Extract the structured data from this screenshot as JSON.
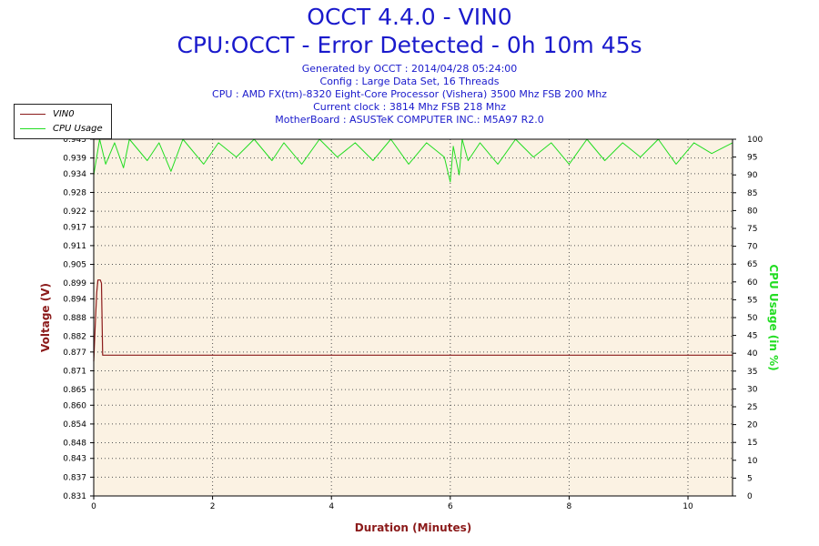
{
  "header": {
    "title": "OCCT 4.4.0 - VIN0",
    "subtitle": "CPU:OCCT - Error Detected - 0h 10m 45s",
    "info_lines": [
      "Generated by OCCT : 2014/04/28 05:24:00",
      "Config : Large Data Set, 16 Threads",
      "CPU : AMD FX(tm)-8320 Eight-Core Processor (Vishera) 3500 Mhz FSB 200 Mhz",
      "Current clock : 3814 Mhz FSB 218 Mhz",
      "MotherBoard : ASUSTeK COMPUTER INC.: M5A97 R2.0"
    ]
  },
  "colors": {
    "voltage": "#8b1a1a",
    "cpu": "#22dd22",
    "plot_bg": "#fbf2e3",
    "grid": "#555555",
    "text_blue": "#1a1acc"
  },
  "chart_data": {
    "type": "line",
    "xlabel": "Duration (Minutes)",
    "ylabel_left": "Voltage (V)",
    "ylabel_right": "CPU Usage (in %)",
    "xlim": [
      0,
      10.75
    ],
    "ylim_left": [
      0.831,
      0.945
    ],
    "ylim_right": [
      0,
      100
    ],
    "x_ticks": [
      "0",
      "2",
      "4",
      "6",
      "8",
      "10"
    ],
    "y_ticks_left": [
      "0.945",
      "0.939",
      "0.934",
      "0.928",
      "0.922",
      "0.917",
      "0.911",
      "0.905",
      "0.899",
      "0.894",
      "0.888",
      "0.882",
      "0.877",
      "0.871",
      "0.865",
      "0.860",
      "0.854",
      "0.848",
      "0.843",
      "0.837",
      "0.831"
    ],
    "y_ticks_right": [
      "100",
      "95",
      "90",
      "85",
      "80",
      "75",
      "70",
      "65",
      "60",
      "55",
      "50",
      "45",
      "40",
      "35",
      "30",
      "25",
      "20",
      "15",
      "10",
      "5",
      "0"
    ],
    "grid": true,
    "legend_position": "top-left",
    "series": [
      {
        "name": "VIN0",
        "axis": "left",
        "x": [
          0.0,
          0.03,
          0.05,
          0.07,
          0.09,
          0.11,
          0.13,
          0.15,
          0.2,
          1.0,
          3.0,
          5.0,
          7.0,
          9.0,
          10.75
        ],
        "y": [
          0.874,
          0.888,
          0.896,
          0.9,
          0.9,
          0.9,
          0.899,
          0.876,
          0.876,
          0.876,
          0.876,
          0.876,
          0.876,
          0.876,
          0.876
        ]
      },
      {
        "name": "CPU Usage",
        "axis": "right",
        "x": [
          0.0,
          0.1,
          0.2,
          0.35,
          0.5,
          0.6,
          0.9,
          1.1,
          1.3,
          1.5,
          1.85,
          2.1,
          2.4,
          2.7,
          3.0,
          3.2,
          3.5,
          3.8,
          4.1,
          4.4,
          4.7,
          5.0,
          5.3,
          5.6,
          5.9,
          6.0,
          6.05,
          6.15,
          6.2,
          6.3,
          6.5,
          6.8,
          7.1,
          7.4,
          7.7,
          8.0,
          8.3,
          8.6,
          8.9,
          9.2,
          9.5,
          9.8,
          10.1,
          10.4,
          10.75
        ],
        "y": [
          90,
          100,
          93,
          99,
          92,
          100,
          94,
          99,
          91,
          100,
          93,
          99,
          95,
          100,
          94,
          99,
          93,
          100,
          95,
          99,
          94,
          100,
          93,
          99,
          95,
          88,
          98,
          90,
          100,
          94,
          99,
          93,
          100,
          95,
          99,
          93,
          100,
          94,
          99,
          95,
          100,
          93,
          99,
          96,
          99
        ]
      }
    ]
  }
}
